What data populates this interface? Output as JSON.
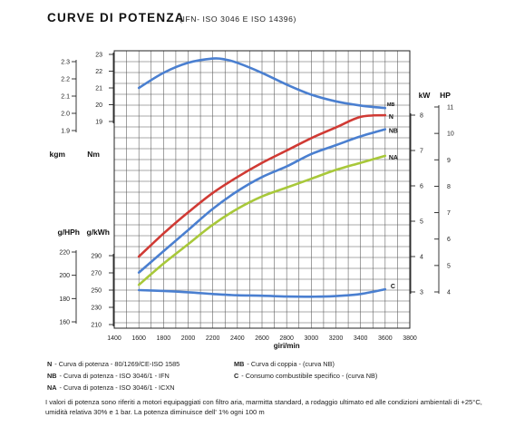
{
  "title": {
    "main": "CURVE DI POTENZA",
    "sub": "(IFN- ISO 3046 E ISO 14396)"
  },
  "chart_data": {
    "type": "line",
    "x_axis": {
      "label": "giri/min",
      "range": [
        1400,
        3800
      ],
      "ticks": [
        "1400",
        "1600",
        "1800",
        "2000",
        "2200",
        "2400",
        "2600",
        "2800",
        "3000",
        "3200",
        "3400",
        "3600",
        "3800"
      ]
    },
    "axes": {
      "torque_nm": {
        "label": "Nm",
        "range": [
          19,
          23
        ],
        "ticks": [
          "19",
          "20",
          "21",
          "22",
          "23"
        ]
      },
      "torque_kgm": {
        "label": "kgm",
        "range": [
          1.9,
          2.3
        ],
        "ticks": [
          "1.9",
          "2.0",
          "2.1",
          "2.2",
          "2.3"
        ]
      },
      "sfc_gkwh": {
        "label": "g/kWh",
        "range": [
          210,
          290
        ],
        "ticks": [
          "210",
          "230",
          "250",
          "270",
          "290"
        ]
      },
      "sfc_ghph": {
        "label": "g/HPh",
        "range": [
          160,
          220
        ],
        "ticks": [
          "160",
          "180",
          "200",
          "220"
        ]
      },
      "power_kw": {
        "label": "kW",
        "range": [
          3,
          8
        ],
        "ticks": [
          "3",
          "4",
          "5",
          "6",
          "7",
          "8"
        ]
      },
      "power_hp": {
        "label": "HP",
        "range": [
          4,
          11
        ],
        "ticks": [
          "4",
          "5",
          "6",
          "7",
          "8",
          "9",
          "10",
          "11"
        ]
      }
    },
    "grid": true,
    "series": [
      {
        "name": "MB",
        "axis": "torque_nm",
        "color": "#4a7fd0",
        "x": [
          1600,
          1800,
          2000,
          2200,
          2300,
          2400,
          2600,
          2800,
          3000,
          3200,
          3400,
          3600
        ],
        "y": [
          21.0,
          21.9,
          22.5,
          22.75,
          22.7,
          22.5,
          21.9,
          21.2,
          20.6,
          20.2,
          19.95,
          19.8
        ]
      },
      {
        "name": "N",
        "axis": "power_kw",
        "color": "#d03a34",
        "x": [
          1600,
          1800,
          2000,
          2200,
          2400,
          2600,
          2800,
          3000,
          3200,
          3400,
          3600
        ],
        "y": [
          4.0,
          4.65,
          5.25,
          5.8,
          6.25,
          6.65,
          7.0,
          7.35,
          7.65,
          7.95,
          8.0
        ]
      },
      {
        "name": "NB",
        "axis": "power_kw",
        "color": "#4a7fd0",
        "x": [
          1600,
          1800,
          2000,
          2200,
          2400,
          2600,
          2800,
          3000,
          3200,
          3400,
          3600
        ],
        "y": [
          3.55,
          4.15,
          4.75,
          5.35,
          5.85,
          6.25,
          6.55,
          6.9,
          7.15,
          7.4,
          7.6
        ]
      },
      {
        "name": "NA",
        "axis": "power_kw",
        "color": "#a8c83a",
        "x": [
          1600,
          1800,
          2000,
          2200,
          2400,
          2600,
          2800,
          3000,
          3200,
          3400,
          3600
        ],
        "y": [
          3.2,
          3.8,
          4.35,
          4.9,
          5.35,
          5.7,
          5.95,
          6.2,
          6.45,
          6.65,
          6.85
        ]
      },
      {
        "name": "C",
        "axis": "sfc_gkwh",
        "color": "#4a7fd0",
        "x": [
          1600,
          1800,
          2000,
          2200,
          2400,
          2600,
          2800,
          3000,
          3200,
          3400,
          3600
        ],
        "y": [
          250,
          249,
          247.5,
          245.5,
          244,
          243.5,
          242.5,
          242.3,
          243,
          245.5,
          251
        ]
      }
    ],
    "curve_tags": [
      {
        "text": "MB",
        "series": "MB"
      },
      {
        "text": "N",
        "series": "N"
      },
      {
        "text": "NB",
        "series": "NB"
      },
      {
        "text": "NA",
        "series": "NA"
      },
      {
        "text": "C",
        "series": "C"
      }
    ]
  },
  "legend": [
    {
      "key": "N",
      "text": "- Curva di potenza - 80/1269/CE-ISO 1585"
    },
    {
      "key": "MB",
      "text": "- Curva di coppia - (curva NB)"
    },
    {
      "key": "NB",
      "text": "- Curva di potenza  - ISO 3046/1 - IFN"
    },
    {
      "key": "C",
      "text": "- Consumo combustibile specifico - (curva NB)"
    },
    {
      "key": "NA",
      "text": "- Curva di potenza  - ISO 3046/1 - ICXN"
    }
  ],
  "note": "I valori di potenza sono riferiti a motori equipaggiati con filtro aria, marmitta standard, a rodaggio ultimato ed alle condizioni ambientali di +25°C, umidità relativa 30% e 1 bar. La potenza diminuisce dell' 1% ogni 100 m"
}
